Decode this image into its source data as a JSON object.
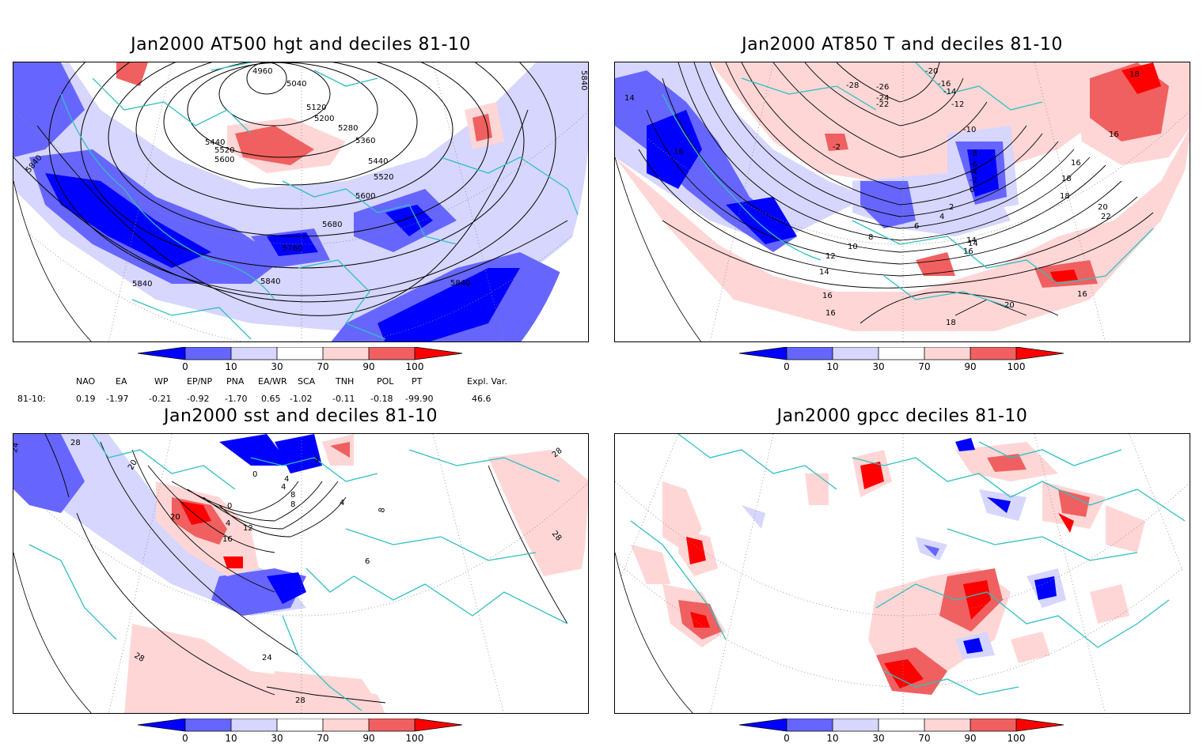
{
  "panels": [
    {
      "title": "Jan2000 AT500 hgt and deciles 81-10",
      "contour_labels": [
        "4960",
        "5040",
        "5120",
        "5200",
        "5280",
        "5360",
        "5440",
        "5520",
        "5600",
        "5440",
        "5520",
        "5600",
        "5680",
        "5760",
        "5840",
        "5840",
        "5840",
        "5840",
        "5840"
      ]
    },
    {
      "title": "Jan2000 AT850 T and deciles 81-10",
      "contour_labels": [
        "14",
        "16",
        "-28",
        "-26",
        "-24",
        "-22",
        "-20",
        "-16",
        "-14",
        "-12",
        "-10",
        "-8",
        "-6",
        "-4",
        "-2",
        "0",
        "2",
        "4",
        "6",
        "8",
        "10",
        "12",
        "14",
        "16",
        "-2",
        "14",
        "16",
        "18",
        "20",
        "22",
        "18",
        "16",
        "20",
        "18",
        "16",
        "16",
        "14",
        "16",
        "18"
      ]
    },
    {
      "title": "Jan2000 sst and deciles 81-10",
      "contour_labels": [
        "28",
        "24",
        "20",
        "20",
        "16",
        "12",
        "8",
        "4",
        "0",
        "4",
        "0",
        "4",
        "8",
        "4",
        "4",
        "8",
        "28",
        "28",
        "28",
        "24",
        "28",
        "6"
      ]
    },
    {
      "title": "Jan2000 gpcc deciles 81-10",
      "contour_labels": []
    }
  ],
  "colorbar": {
    "labels": [
      "0",
      "10",
      "30",
      "70",
      "90",
      "100"
    ],
    "colors": [
      "#0000ff",
      "#6666ff",
      "#d6d6ff",
      "#ffffff",
      "#ffd6d6",
      "#f06060",
      "#ff0000"
    ]
  },
  "teleconnections": {
    "headers": [
      "NAO",
      "EA",
      "WP",
      "EP/NP",
      "PNA",
      "EA/WR",
      "SCA",
      "TNH",
      "POL",
      "PT",
      "Expl. Var."
    ],
    "row_label": "81-10:",
    "values": [
      "0.19",
      "-1.97",
      "-0.21",
      "-0.92",
      "-1.70",
      "0.65",
      "-1.02",
      "-0.11",
      "-0.18",
      "-99.90",
      "46.6"
    ]
  },
  "colors": {
    "coast": "#30c0c0",
    "blue_dark": "#0000ff",
    "blue_mid": "#6666ff",
    "blue_light": "#d6d6ff",
    "red_light": "#ffd6d6",
    "red_mid": "#f06060",
    "red_dark": "#ff0000"
  }
}
